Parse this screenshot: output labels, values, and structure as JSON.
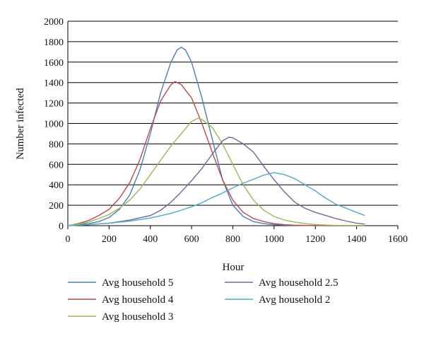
{
  "chart_data": {
    "type": "line",
    "xlabel": "Hour",
    "ylabel": "Number infected",
    "xlim": [
      0,
      1600
    ],
    "ylim": [
      0,
      2000
    ],
    "x_ticks": [
      0,
      200,
      400,
      600,
      800,
      1000,
      1200,
      1400,
      1600
    ],
    "y_ticks": [
      0,
      200,
      400,
      600,
      800,
      1000,
      1200,
      1400,
      1600,
      1800,
      2000
    ],
    "grid": "horizontal",
    "legend_position": "bottom",
    "series": [
      {
        "name": "Avg household 5",
        "color": "#4a7ebb",
        "x": [
          0,
          50,
          100,
          150,
          200,
          250,
          300,
          350,
          400,
          450,
          500,
          530,
          550,
          570,
          600,
          650,
          700,
          750,
          800,
          850,
          900,
          950,
          1000,
          1050,
          1100,
          1150,
          1200,
          1300,
          1440
        ],
        "y": [
          0,
          10,
          20,
          40,
          80,
          160,
          300,
          550,
          900,
          1300,
          1600,
          1720,
          1745,
          1720,
          1600,
          1250,
          850,
          450,
          200,
          90,
          40,
          20,
          10,
          5,
          3,
          2,
          1,
          0,
          0
        ]
      },
      {
        "name": "Avg household 4",
        "color": "#be4b48",
        "x": [
          0,
          50,
          100,
          150,
          200,
          250,
          300,
          350,
          400,
          450,
          500,
          520,
          550,
          600,
          650,
          700,
          750,
          800,
          850,
          900,
          950,
          1000,
          1050,
          1100,
          1150,
          1200,
          1250,
          1300,
          1440
        ],
        "y": [
          0,
          20,
          50,
          100,
          160,
          270,
          420,
          650,
          950,
          1220,
          1380,
          1410,
          1380,
          1250,
          1000,
          720,
          450,
          250,
          130,
          70,
          40,
          20,
          10,
          5,
          3,
          2,
          1,
          0,
          0
        ]
      },
      {
        "name": "Avg household 3",
        "color": "#98b954",
        "x": [
          0,
          50,
          100,
          150,
          200,
          250,
          300,
          350,
          400,
          450,
          500,
          550,
          600,
          630,
          650,
          700,
          750,
          800,
          850,
          900,
          950,
          1000,
          1050,
          1100,
          1150,
          1200,
          1250,
          1300,
          1440
        ],
        "y": [
          0,
          15,
          35,
          70,
          110,
          170,
          250,
          360,
          500,
          640,
          780,
          900,
          1020,
          1050,
          1040,
          960,
          800,
          600,
          400,
          250,
          150,
          90,
          55,
          35,
          20,
          12,
          6,
          2,
          0
        ]
      },
      {
        "name": "Avg household 2.5",
        "color": "#7d5fa0",
        "x": [
          0,
          100,
          200,
          300,
          400,
          450,
          500,
          550,
          600,
          650,
          700,
          750,
          780,
          800,
          850,
          900,
          950,
          1000,
          1050,
          1100,
          1150,
          1200,
          1250,
          1300,
          1350,
          1400,
          1440
        ],
        "y": [
          0,
          10,
          25,
          55,
          100,
          150,
          230,
          330,
          440,
          560,
          700,
          830,
          865,
          860,
          800,
          720,
          580,
          450,
          330,
          230,
          170,
          130,
          100,
          70,
          45,
          25,
          15
        ]
      },
      {
        "name": "Avg household 2",
        "color": "#4bacc6",
        "x": [
          0,
          100,
          200,
          300,
          400,
          500,
          600,
          650,
          700,
          750,
          800,
          850,
          900,
          950,
          1000,
          1050,
          1100,
          1150,
          1200,
          1250,
          1300,
          1350,
          1400,
          1440
        ],
        "y": [
          0,
          10,
          25,
          45,
          75,
          120,
          185,
          225,
          275,
          320,
          370,
          415,
          455,
          495,
          520,
          500,
          460,
          400,
          340,
          270,
          210,
          170,
          130,
          100
        ]
      }
    ]
  }
}
